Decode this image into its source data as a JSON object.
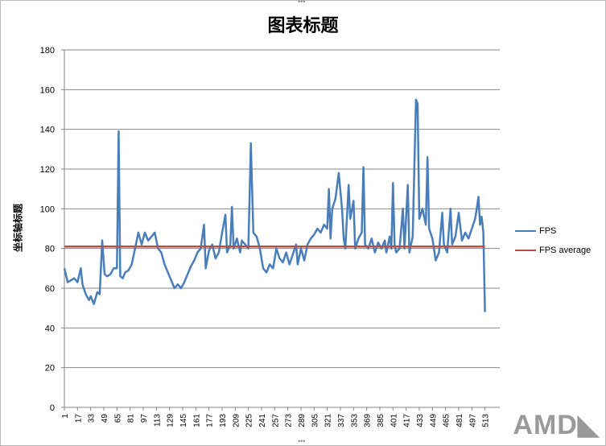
{
  "chart_data": {
    "type": "line",
    "title": "图表标题",
    "ylabel": "坐标轴标题",
    "xlabel": "",
    "ylim": [
      0,
      180
    ],
    "yticks": [
      0,
      20,
      40,
      60,
      80,
      100,
      120,
      140,
      160,
      180
    ],
    "xlim": [
      1,
      531
    ],
    "xticks": [
      1,
      17,
      33,
      49,
      65,
      81,
      97,
      113,
      129,
      145,
      161,
      177,
      193,
      209,
      225,
      241,
      257,
      273,
      289,
      305,
      321,
      337,
      353,
      369,
      385,
      401,
      417,
      433,
      449,
      465,
      481,
      497,
      513
    ],
    "grid": true,
    "legend_position": "right",
    "series": [
      {
        "name": "FPS",
        "color": "#4a7ebb",
        "points": [
          [
            1,
            70
          ],
          [
            5,
            63
          ],
          [
            9,
            64
          ],
          [
            13,
            65
          ],
          [
            17,
            63
          ],
          [
            21,
            70
          ],
          [
            23,
            62
          ],
          [
            27,
            57
          ],
          [
            31,
            54
          ],
          [
            33,
            56
          ],
          [
            37,
            52
          ],
          [
            41,
            58
          ],
          [
            44,
            57
          ],
          [
            47,
            84
          ],
          [
            50,
            67
          ],
          [
            53,
            66
          ],
          [
            57,
            67
          ],
          [
            61,
            70
          ],
          [
            65,
            70
          ],
          [
            67,
            139
          ],
          [
            69,
            66
          ],
          [
            72,
            65
          ],
          [
            75,
            68
          ],
          [
            79,
            69
          ],
          [
            83,
            72
          ],
          [
            87,
            80
          ],
          [
            91,
            88
          ],
          [
            95,
            82
          ],
          [
            99,
            88
          ],
          [
            103,
            84
          ],
          [
            107,
            86
          ],
          [
            111,
            88
          ],
          [
            115,
            80
          ],
          [
            119,
            78
          ],
          [
            123,
            72
          ],
          [
            127,
            68
          ],
          [
            131,
            64
          ],
          [
            135,
            60
          ],
          [
            139,
            62
          ],
          [
            143,
            60
          ],
          [
            147,
            63
          ],
          [
            151,
            67
          ],
          [
            155,
            71
          ],
          [
            159,
            74
          ],
          [
            163,
            78
          ],
          [
            167,
            80
          ],
          [
            171,
            92
          ],
          [
            173,
            70
          ],
          [
            177,
            79
          ],
          [
            181,
            82
          ],
          [
            185,
            75
          ],
          [
            189,
            78
          ],
          [
            193,
            88
          ],
          [
            197,
            97
          ],
          [
            199,
            78
          ],
          [
            203,
            82
          ],
          [
            205,
            101
          ],
          [
            207,
            80
          ],
          [
            211,
            85
          ],
          [
            215,
            78
          ],
          [
            217,
            84
          ],
          [
            221,
            82
          ],
          [
            225,
            80
          ],
          [
            228,
            133
          ],
          [
            231,
            88
          ],
          [
            235,
            86
          ],
          [
            239,
            80
          ],
          [
            243,
            70
          ],
          [
            247,
            68
          ],
          [
            251,
            72
          ],
          [
            255,
            70
          ],
          [
            259,
            80
          ],
          [
            263,
            75
          ],
          [
            267,
            73
          ],
          [
            271,
            78
          ],
          [
            275,
            72
          ],
          [
            279,
            77
          ],
          [
            283,
            82
          ],
          [
            285,
            72
          ],
          [
            289,
            80
          ],
          [
            293,
            74
          ],
          [
            297,
            82
          ],
          [
            301,
            85
          ],
          [
            305,
            87
          ],
          [
            309,
            90
          ],
          [
            313,
            88
          ],
          [
            317,
            92
          ],
          [
            321,
            90
          ],
          [
            323,
            110
          ],
          [
            325,
            85
          ],
          [
            327,
            100
          ],
          [
            331,
            105
          ],
          [
            335,
            118
          ],
          [
            339,
            100
          ],
          [
            341,
            85
          ],
          [
            343,
            80
          ],
          [
            347,
            112
          ],
          [
            349,
            95
          ],
          [
            353,
            104
          ],
          [
            355,
            80
          ],
          [
            359,
            85
          ],
          [
            363,
            88
          ],
          [
            365,
            121
          ],
          [
            367,
            82
          ],
          [
            371,
            80
          ],
          [
            375,
            85
          ],
          [
            379,
            78
          ],
          [
            383,
            83
          ],
          [
            387,
            80
          ],
          [
            391,
            84
          ],
          [
            393,
            78
          ],
          [
            397,
            86
          ],
          [
            399,
            80
          ],
          [
            401,
            113
          ],
          [
            403,
            82
          ],
          [
            405,
            78
          ],
          [
            409,
            80
          ],
          [
            413,
            100
          ],
          [
            415,
            80
          ],
          [
            419,
            112
          ],
          [
            421,
            78
          ],
          [
            425,
            86
          ],
          [
            429,
            155
          ],
          [
            431,
            153
          ],
          [
            433,
            95
          ],
          [
            437,
            100
          ],
          [
            441,
            92
          ],
          [
            443,
            126
          ],
          [
            445,
            90
          ],
          [
            449,
            85
          ],
          [
            453,
            74
          ],
          [
            457,
            78
          ],
          [
            461,
            98
          ],
          [
            463,
            82
          ],
          [
            467,
            78
          ],
          [
            471,
            100
          ],
          [
            473,
            82
          ],
          [
            477,
            86
          ],
          [
            481,
            98
          ],
          [
            485,
            84
          ],
          [
            489,
            88
          ],
          [
            493,
            85
          ],
          [
            497,
            90
          ],
          [
            501,
            95
          ],
          [
            503,
            100
          ],
          [
            505,
            106
          ],
          [
            507,
            92
          ],
          [
            509,
            96
          ],
          [
            511,
            88
          ],
          [
            513,
            48
          ]
        ]
      },
      {
        "name": "FPS average",
        "color": "#be4b48",
        "points": [
          [
            1,
            81
          ],
          [
            513,
            81
          ]
        ]
      }
    ]
  }
}
